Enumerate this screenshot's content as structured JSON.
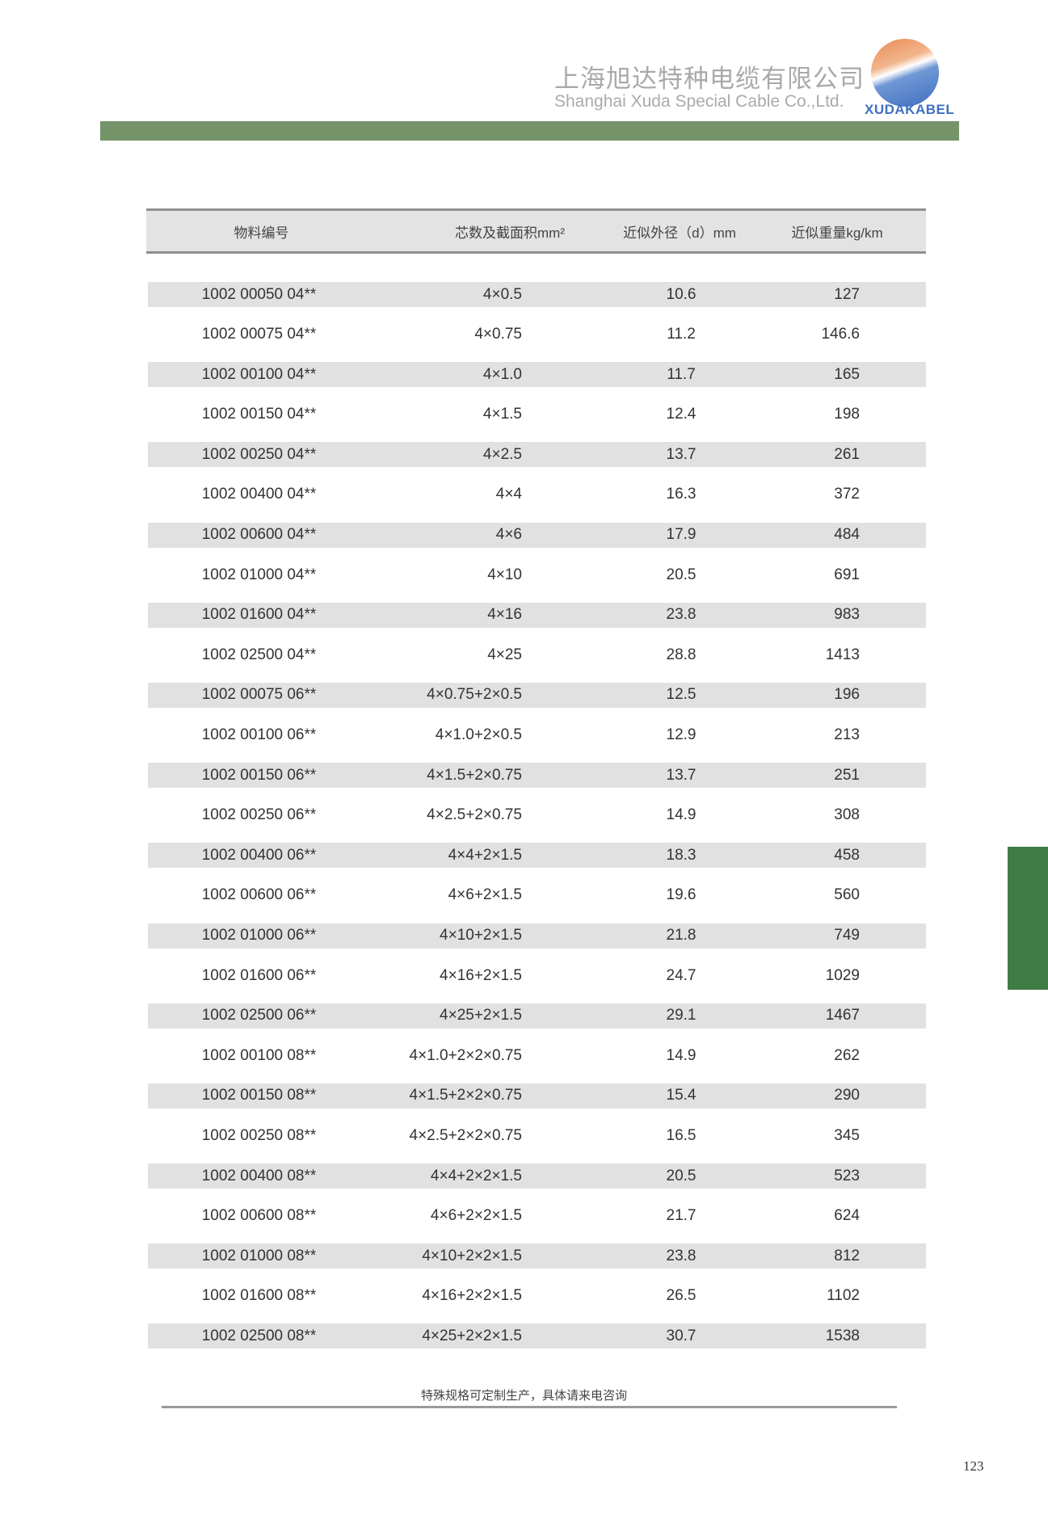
{
  "header": {
    "company_cn": "上海旭达特种电缆有限公司",
    "company_en": "Shanghai Xuda Special Cable Co.,Ltd.",
    "logo_text": "XUDAKABEL",
    "accent_color": "#76946a"
  },
  "table": {
    "columns": [
      "物料编号",
      "芯数及截面积mm²",
      "近似外径（d）mm",
      "近似重量kg/km"
    ],
    "rows": [
      [
        "1002 00050 04**",
        "4×0.5",
        "10.6",
        "127"
      ],
      [
        "1002 00075 04**",
        "4×0.75",
        "11.2",
        "146.6"
      ],
      [
        "1002 00100 04**",
        "4×1.0",
        "11.7",
        "165"
      ],
      [
        "1002 00150 04**",
        "4×1.5",
        "12.4",
        "198"
      ],
      [
        "1002 00250 04**",
        "4×2.5",
        "13.7",
        "261"
      ],
      [
        "1002 00400 04**",
        "4×4",
        "16.3",
        "372"
      ],
      [
        "1002 00600 04**",
        "4×6",
        "17.9",
        "484"
      ],
      [
        "1002 01000 04**",
        "4×10",
        "20.5",
        "691"
      ],
      [
        "1002 01600 04**",
        "4×16",
        "23.8",
        "983"
      ],
      [
        "1002 02500 04**",
        "4×25",
        "28.8",
        "1413"
      ],
      [
        "1002 00075 06**",
        "4×0.75+2×0.5",
        "12.5",
        "196"
      ],
      [
        "1002 00100 06**",
        "4×1.0+2×0.5",
        "12.9",
        "213"
      ],
      [
        "1002 00150 06**",
        "4×1.5+2×0.75",
        "13.7",
        "251"
      ],
      [
        "1002 00250 06**",
        "4×2.5+2×0.75",
        "14.9",
        "308"
      ],
      [
        "1002 00400 06**",
        "4×4+2×1.5",
        "18.3",
        "458"
      ],
      [
        "1002 00600 06**",
        "4×6+2×1.5",
        "19.6",
        "560"
      ],
      [
        "1002 01000 06**",
        "4×10+2×1.5",
        "21.8",
        "749"
      ],
      [
        "1002 01600 06**",
        "4×16+2×1.5",
        "24.7",
        "1029"
      ],
      [
        "1002 02500 06**",
        "4×25+2×1.5",
        "29.1",
        "1467"
      ],
      [
        "1002 00100 08**",
        "4×1.0+2×2×0.75",
        "14.9",
        "262"
      ],
      [
        "1002 00150 08**",
        "4×1.5+2×2×0.75",
        "15.4",
        "290"
      ],
      [
        "1002 00250 08**",
        "4×2.5+2×2×0.75",
        "16.5",
        "345"
      ],
      [
        "1002 00400 08**",
        "4×4+2×2×1.5",
        "20.5",
        "523"
      ],
      [
        "1002 00600 08**",
        "4×6+2×2×1.5",
        "21.7",
        "624"
      ],
      [
        "1002 01000 08**",
        "4×10+2×2×1.5",
        "23.8",
        "812"
      ],
      [
        "1002 01600 08**",
        "4×16+2×2×1.5",
        "26.5",
        "1102"
      ],
      [
        "1002 02500 08**",
        "4×25+2×2×1.5",
        "30.7",
        "1538"
      ]
    ]
  },
  "footer": {
    "note": "特殊规格可定制生产，具体请来电咨询",
    "page_number": "123"
  }
}
